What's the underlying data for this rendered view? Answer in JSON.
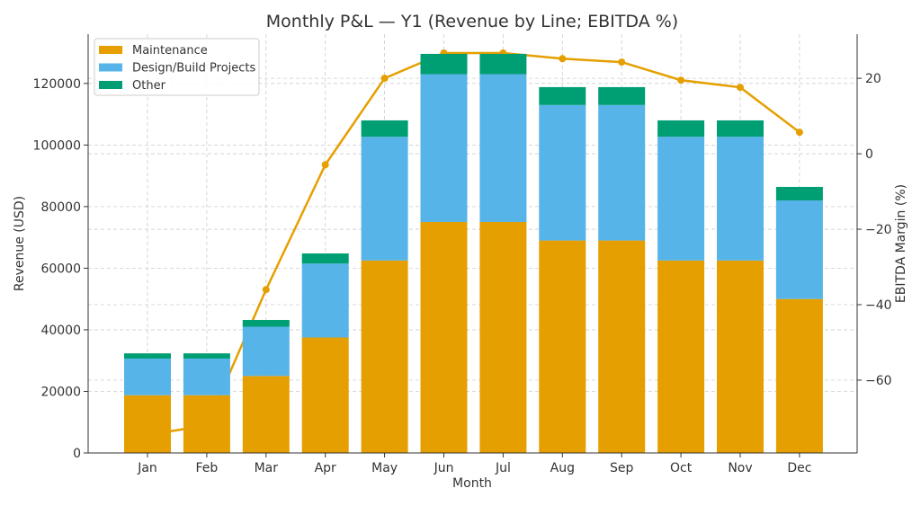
{
  "chart_data": {
    "type": "bar",
    "stacked": true,
    "title": "Monthly P&L — Y1 (Revenue by Line; EBITDA %)",
    "xlabel": "Month",
    "ylabel": "Revenue (USD)",
    "y2label": "EBITDA Margin (%)",
    "categories": [
      "Jan",
      "Feb",
      "Mar",
      "Apr",
      "May",
      "Jun",
      "Jul",
      "Aug",
      "Sep",
      "Oct",
      "Nov",
      "Dec"
    ],
    "ylim": [
      0,
      136000
    ],
    "yticks": [
      0,
      20000,
      40000,
      60000,
      80000,
      100000,
      120000
    ],
    "y2lim": [
      -79.3,
      31.7
    ],
    "y2ticks": [
      -60,
      -40,
      -20,
      0,
      20
    ],
    "y2tick_labels": [
      "−60",
      "−40",
      "−20",
      "0",
      "20"
    ],
    "grid": true,
    "legend_position": "top-left",
    "series": [
      {
        "name": "Maintenance",
        "color": "#E69F00",
        "values": [
          18750,
          18750,
          25000,
          37500,
          62500,
          75000,
          75000,
          69000,
          69000,
          62500,
          62500,
          50000
        ]
      },
      {
        "name": "Design/Build Projects",
        "color": "#56B4E9",
        "values": [
          11900,
          11900,
          16000,
          24000,
          40200,
          48000,
          48000,
          44000,
          44000,
          40200,
          40200,
          32000
        ]
      },
      {
        "name": "Other",
        "color": "#009E73",
        "values": [
          1700,
          1700,
          2200,
          3300,
          5300,
          6600,
          6600,
          5800,
          5800,
          5300,
          5300,
          4400
        ]
      }
    ],
    "line": {
      "name": "EBITDA Margin",
      "color": "#E69F00",
      "axis": "right",
      "values": [
        -74.5,
        -72,
        -36,
        -2.9,
        20,
        26.7,
        26.7,
        25.2,
        24.3,
        19.5,
        17.6,
        5.7
      ]
    }
  }
}
